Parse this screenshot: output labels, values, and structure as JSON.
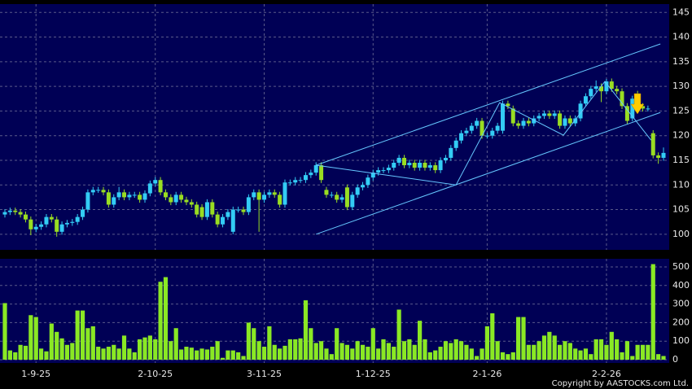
{
  "chart_data": {
    "type": "candlestick",
    "categories": [
      null,
      null,
      null,
      null,
      null,
      null,
      "1-9-25",
      null,
      null,
      null,
      null,
      null,
      null,
      null,
      null,
      null,
      null,
      null,
      null,
      null,
      null,
      null,
      null,
      null,
      null,
      null,
      null,
      null,
      null,
      "2-10-25",
      null,
      null,
      null,
      null,
      null,
      null,
      null,
      null,
      null,
      null,
      null,
      null,
      null,
      null,
      null,
      null,
      null,
      null,
      null,
      null,
      "3-11-25",
      null,
      null,
      null,
      null,
      null,
      null,
      null,
      null,
      null,
      null,
      null,
      null,
      null,
      null,
      null,
      null,
      null,
      null,
      null,
      null,
      "1-12-25",
      null,
      null,
      null,
      null,
      null,
      null,
      null,
      null,
      null,
      null,
      null,
      null,
      null,
      null,
      null,
      null,
      null,
      null,
      null,
      null,
      null,
      "2-1-26",
      null,
      null,
      null,
      null,
      null,
      null,
      null,
      null,
      null,
      null,
      null,
      null,
      null,
      null,
      null,
      null,
      null,
      null,
      null,
      null,
      null,
      null,
      "2-2-26",
      null,
      null,
      null,
      null,
      null,
      null,
      null,
      null,
      null,
      null,
      null
    ],
    "open": [
      104,
      104.5,
      104.8,
      104.5,
      104,
      103,
      101,
      101.5,
      102,
      103.5,
      103,
      100.5,
      102,
      102.3,
      102.5,
      103.5,
      105,
      108.5,
      109,
      109,
      108.5,
      106,
      107.5,
      108.5,
      107.5,
      108,
      108,
      107,
      108.3,
      110.3,
      111,
      108.5,
      107.5,
      106.5,
      108,
      107,
      106.5,
      106,
      105.5,
      103.5,
      106.5,
      104,
      102,
      103.5,
      100.5,
      105,
      105,
      104.5,
      107.5,
      108.5,
      107,
      108,
      108.5,
      108,
      106,
      110.5,
      110.5,
      111,
      111,
      112,
      112.5,
      114,
      109,
      108,
      108,
      107,
      109.5,
      105.5,
      108,
      109.5,
      110,
      111.5,
      112.5,
      113,
      113,
      113.5,
      114.5,
      115.5,
      114,
      114.5,
      113.5,
      114.5,
      113.5,
      114,
      113,
      115,
      115.5,
      117.5,
      119,
      120.5,
      121,
      122,
      123,
      120,
      120,
      121,
      121,
      126.5,
      125.5,
      122.5,
      122,
      123,
      122.5,
      123.5,
      124,
      124.5,
      124,
      124.5,
      122,
      123.5,
      122.5,
      123.5,
      126.5,
      128,
      129.5,
      130,
      129,
      131,
      129.5,
      129,
      126,
      123.5,
      128.5,
      126,
      125.5,
      120.5,
      116,
      115.5
    ],
    "high": [
      105.1,
      105.4,
      105.4,
      105.1,
      104.6,
      103.6,
      102.1,
      102.6,
      104.1,
      104.1,
      103.6,
      102.6,
      102.9,
      103.1,
      104.1,
      105.6,
      109.1,
      109.6,
      109.6,
      109.6,
      109.1,
      108.1,
      109.6,
      109.1,
      108.6,
      108.6,
      108.6,
      108.9,
      110.9,
      111.6,
      111.6,
      109.1,
      108.1,
      108.6,
      108.6,
      107.6,
      107.1,
      106.6,
      106.1,
      107.1,
      107.1,
      104.6,
      104.1,
      105.1,
      105.6,
      105.6,
      105.6,
      108.1,
      109.1,
      109.1,
      108.6,
      109.1,
      109.1,
      108.6,
      111.1,
      111.1,
      111.6,
      111.6,
      112.6,
      113.1,
      114.6,
      114.6,
      109.6,
      108.6,
      108.6,
      108.1,
      110.1,
      108.6,
      110.1,
      110.6,
      112.1,
      113.1,
      113.6,
      113.6,
      114.1,
      115.1,
      116.1,
      116.1,
      115.1,
      115.1,
      115.1,
      115.1,
      114.6,
      114.6,
      115.6,
      116.1,
      118.1,
      119.6,
      121.1,
      121.6,
      122.6,
      123.6,
      123.6,
      120.6,
      121.6,
      122.6,
      127.1,
      127.1,
      126.1,
      123.1,
      123.6,
      123.6,
      124.1,
      124.6,
      125.1,
      125.1,
      125.1,
      125.1,
      124.1,
      124.1,
      124.1,
      127.1,
      128.6,
      130.1,
      131.2,
      130.6,
      131.5,
      131.6,
      130.1,
      129.6,
      126.6,
      128.1,
      129.1,
      126.6,
      126.1,
      121.1,
      116.6,
      117.6
    ],
    "low": [
      103.4,
      103.9,
      103.9,
      103.4,
      102.4,
      99.8,
      100.4,
      100.9,
      101.4,
      102.4,
      99.5,
      99.9,
      101.4,
      101.7,
      101.9,
      102.9,
      104.4,
      107.9,
      108.4,
      107.9,
      105.4,
      105.4,
      106.9,
      106.9,
      106.9,
      107.4,
      106.4,
      106.4,
      107.7,
      109.7,
      107.9,
      106.9,
      105.9,
      105.9,
      106.4,
      105.9,
      105.4,
      103.4,
      102.9,
      102.9,
      103.4,
      101.4,
      101.4,
      102.9,
      100,
      104.4,
      103.9,
      103.9,
      106.9,
      100.5,
      106.4,
      107.4,
      107.4,
      105.4,
      105.4,
      109.9,
      109.9,
      110.4,
      110.4,
      111.4,
      111.9,
      110.4,
      107.4,
      107.4,
      106.4,
      106.4,
      104.9,
      104.9,
      107.4,
      108.9,
      109.4,
      110.9,
      111.9,
      112.4,
      112.4,
      112.9,
      113.9,
      113.4,
      113.4,
      112.9,
      112.9,
      112.9,
      112.9,
      112.4,
      112.4,
      114.4,
      114.9,
      116.9,
      118.4,
      119.9,
      120.4,
      121.4,
      119.4,
      119.4,
      119.4,
      120.4,
      120.4,
      125.4,
      121.9,
      121.4,
      121.4,
      121.9,
      121.9,
      122.9,
      123.4,
      123.4,
      123.4,
      121.4,
      121.4,
      121.9,
      121.9,
      122.9,
      125.9,
      127.4,
      128.9,
      126.8,
      128.4,
      128.9,
      128.4,
      125.4,
      122.4,
      122.9,
      125.4,
      124.9,
      124.9,
      115.4,
      114.3,
      114.9
    ],
    "close": [
      104.5,
      104.8,
      104.5,
      104,
      103,
      101,
      101.5,
      102,
      103.5,
      103,
      100.5,
      102,
      102.3,
      102.5,
      103.5,
      105,
      108.5,
      109,
      109,
      108.5,
      106,
      107.5,
      108.5,
      107.5,
      108,
      108,
      107,
      108.3,
      110.3,
      111,
      108.5,
      107.5,
      106.5,
      108,
      107,
      106.5,
      106,
      104,
      103.5,
      106.5,
      104,
      102,
      103.5,
      104.5,
      105,
      105,
      104.5,
      107.5,
      108.5,
      107,
      108,
      108.5,
      108,
      106,
      110.5,
      110.5,
      111,
      111,
      112,
      112.5,
      114,
      111,
      108,
      108,
      107,
      107.5,
      105.5,
      108,
      109.5,
      110,
      111.5,
      112.5,
      113,
      113,
      113.5,
      114.5,
      115.5,
      114,
      114.5,
      113.5,
      114.5,
      113.5,
      114,
      113,
      115,
      115.5,
      117.5,
      119,
      120.5,
      121,
      122,
      123,
      120,
      120,
      121,
      122,
      126.5,
      126,
      122.5,
      122,
      123,
      122.5,
      123.5,
      124,
      124.5,
      124,
      124.5,
      122,
      123.5,
      122.5,
      123.5,
      126.5,
      128,
      129.5,
      130,
      129,
      131,
      129.5,
      129,
      126,
      123,
      127.5,
      126,
      125.5,
      125.5,
      116,
      115.5,
      116.5
    ],
    "up_color": "#33ccf5",
    "down_color": "#99dd22",
    "ylim": [
      97,
      146.2
    ],
    "yticks": [
      100,
      105,
      110,
      115,
      120,
      125,
      130,
      135,
      140,
      145
    ],
    "grid": true,
    "trend_lines": [
      {
        "color": "#66c8ff",
        "x": [
          60,
          126.4
        ],
        "y": [
          114,
          138.6
        ]
      },
      {
        "color": "#66c8ff",
        "x": [
          60,
          126.4
        ],
        "y": [
          100,
          124.7
        ]
      },
      {
        "color": "#66c8ff",
        "x": [
          60,
          87,
          95.4,
          107.7,
          115.7,
          124.6
        ],
        "y": [
          114,
          110,
          126.7,
          120.1,
          131,
          119.1
        ]
      }
    ],
    "volume": {
      "color": "#8ae824",
      "ylim": [
        0,
        535
      ],
      "yticks": [
        0,
        100,
        200,
        300,
        400,
        500
      ],
      "values": [
        305,
        50,
        40,
        80,
        75,
        240,
        230,
        60,
        45,
        195,
        150,
        115,
        80,
        90,
        265,
        265,
        170,
        180,
        70,
        60,
        70,
        80,
        60,
        130,
        60,
        40,
        110,
        120,
        130,
        110,
        420,
        445,
        100,
        170,
        55,
        70,
        65,
        50,
        60,
        55,
        70,
        100,
        10,
        50,
        50,
        40,
        20,
        200,
        170,
        100,
        70,
        180,
        80,
        60,
        75,
        110,
        110,
        115,
        320,
        170,
        90,
        100,
        60,
        30,
        170,
        90,
        80,
        60,
        100,
        80,
        70,
        170,
        60,
        110,
        90,
        70,
        270,
        100,
        110,
        80,
        210,
        110,
        40,
        50,
        70,
        100,
        90,
        110,
        100,
        80,
        60,
        20,
        60,
        180,
        250,
        100,
        40,
        30,
        40,
        230,
        230,
        80,
        80,
        100,
        130,
        150,
        130,
        80,
        100,
        90,
        60,
        50,
        60,
        30,
        110,
        110,
        80,
        150,
        110,
        40,
        100,
        20,
        80,
        80,
        80,
        515,
        30,
        20
      ]
    },
    "copyright": "Copyright by AASTOCKS.com Ltd."
  }
}
